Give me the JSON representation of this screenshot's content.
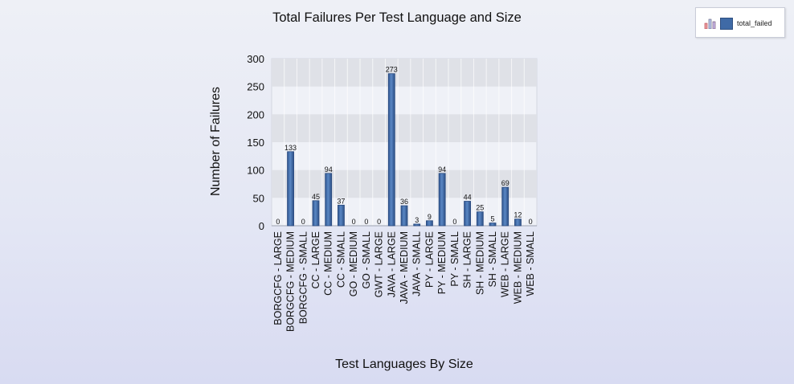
{
  "chart_data": {
    "type": "bar",
    "title": "Total Failures Per Test Language and Size",
    "xlabel": "Test Languages By Size",
    "ylabel": "Number of Failures",
    "ylim": [
      0,
      300
    ],
    "yticks": [
      "0",
      "50",
      "100",
      "150",
      "200",
      "250",
      "300"
    ],
    "grid": true,
    "legend_position": "top-right",
    "categories": [
      "BORGCFG - LARGE",
      "BORGCFG - MEDIUM",
      "BORGCFG - SMALL",
      "CC - LARGE",
      "CC - MEDIUM",
      "CC - SMALL",
      "GO - MEDIUM",
      "GO - SMALL",
      "GWT - LARGE",
      "JAVA - LARGE",
      "JAVA - MEDIUM",
      "JAVA - SMALL",
      "PY - LARGE",
      "PY - MEDIUM",
      "PY - SMALL",
      "SH - LARGE",
      "SH - MEDIUM",
      "SH - SMALL",
      "WEB - LARGE",
      "WEB - MEDIUM",
      "WEB - SMALL"
    ],
    "series": [
      {
        "name": "total_failed",
        "color": "#3f6aa6",
        "values": [
          0,
          133,
          0,
          45,
          94,
          37,
          0,
          0,
          0,
          273,
          36,
          3,
          9,
          94,
          0,
          44,
          25,
          5,
          69,
          12,
          0
        ]
      }
    ]
  }
}
